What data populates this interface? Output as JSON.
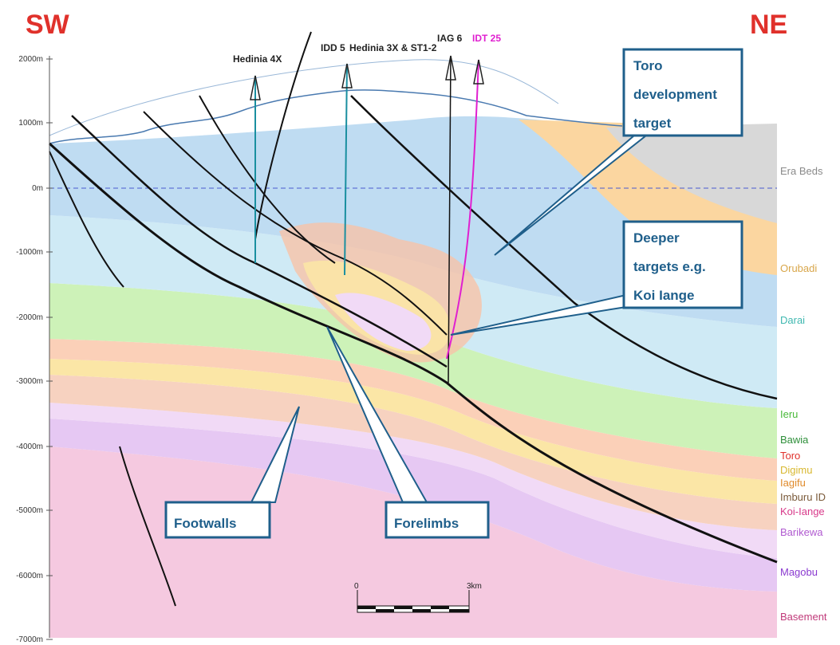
{
  "directions": {
    "left": "SW",
    "right": "NE"
  },
  "depth_axis": [
    "2000m",
    "1000m",
    "0m",
    "-1000m",
    "-2000m",
    "-3000m",
    "-4000m",
    "-5000m",
    "-6000m",
    "-7000m"
  ],
  "wells": {
    "hedinia_4x": "Hedinia 4X",
    "ido_5": "IDD 5",
    "hedinia_3x": "Hedinia 3X & ST1-2",
    "iag_6": "IAG 6",
    "idt_25": "IDT 25"
  },
  "formations": [
    {
      "name": "Era Beds",
      "color": "#8a8a8a"
    },
    {
      "name": "Orubadi",
      "color": "#d8a64a"
    },
    {
      "name": "Darai",
      "color": "#3fb8b0"
    },
    {
      "name": "Ieru",
      "color": "#4aba3a"
    },
    {
      "name": "Bawia",
      "color": "#2e8f3a"
    },
    {
      "name": "Toro",
      "color": "#e0312b"
    },
    {
      "name": "Digimu",
      "color": "#d8b830"
    },
    {
      "name": "Iagifu",
      "color": "#e08a2a"
    },
    {
      "name": "Imburu ID",
      "color": "#7a5a3a"
    },
    {
      "name": "Koi-Iange",
      "color": "#d83a8a"
    },
    {
      "name": "Barikewa",
      "color": "#b05ad0"
    },
    {
      "name": "Magobu",
      "color": "#8a3ad0"
    },
    {
      "name": "Basement",
      "color": "#c03a7a"
    }
  ],
  "callouts": {
    "toro": [
      "Toro",
      "development",
      "target"
    ],
    "deeper": [
      "Deeper",
      "targets e.g.",
      "Koi Iange"
    ],
    "footwalls": "Footwalls",
    "forelimbs": "Forelimbs"
  },
  "scale_bar": {
    "start": "0",
    "end": "3km"
  }
}
